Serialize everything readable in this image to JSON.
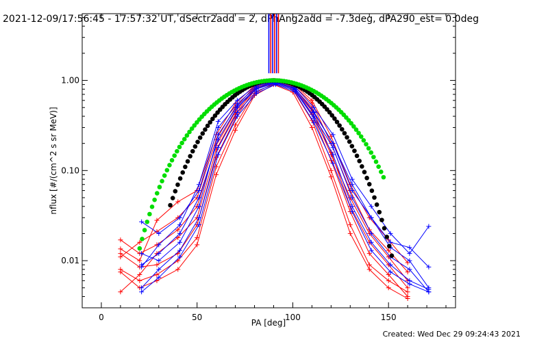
{
  "title": "2021-12-09/17:56:45 - 17:57:32 UT, dSectr2add = 2, dPhAng2add = -7.3deg, dPA290_est=  0.0deg",
  "footer": "Created: Wed Dec 29 09:24:43 2021",
  "chart_data": {
    "type": "scatter",
    "xlabel": "PA [deg]",
    "ylabel": "nflux [#/(cm^2 s sr MeV)]",
    "xlim": [
      -10,
      185
    ],
    "ylim": [
      0.003,
      5.5
    ],
    "yscale": "log",
    "x_ticks": [
      0,
      50,
      100,
      150
    ],
    "x_tick_labels": [
      "0",
      "50",
      "100",
      "150"
    ],
    "y_ticks": [
      0.01,
      0.1,
      1.0
    ],
    "y_tick_labels": [
      "0.01",
      "0.10",
      "1.00"
    ],
    "vertical_lines": [
      {
        "x": 87.5,
        "color": "#0000ff"
      },
      {
        "x": 88.5,
        "color": "#ff0000"
      },
      {
        "x": 89.5,
        "color": "#0000ff"
      },
      {
        "x": 90.5,
        "color": "#ff0000"
      },
      {
        "x": 91.5,
        "color": "#0000ff"
      },
      {
        "x": 92.5,
        "color": "#ff0000"
      }
    ],
    "vertical_line_range": [
      1.2,
      5.5
    ],
    "fits": [
      {
        "color": "#000000",
        "shape": "sin_power",
        "n": 6.0,
        "x_min": 36,
        "x_max": 152,
        "step": 1.3
      },
      {
        "color": "#00dd00",
        "shape": "sin_power",
        "n": 4.0,
        "x_min": 20,
        "x_max": 148,
        "step": 1.3
      }
    ],
    "series": [
      {
        "color": "#ff0000",
        "x": [
          10,
          20,
          29,
          40,
          50,
          60,
          70,
          80,
          90,
          100,
          110,
          120,
          130,
          140,
          150,
          160
        ],
        "y": [
          0.012,
          0.0085,
          0.009,
          0.012,
          0.025,
          0.14,
          0.38,
          0.78,
          0.96,
          0.82,
          0.42,
          0.13,
          0.035,
          0.012,
          0.007,
          0.004
        ]
      },
      {
        "color": "#ff0000",
        "x": [
          10,
          20,
          29,
          40,
          50,
          60,
          70,
          80,
          90,
          100,
          110,
          120,
          130,
          140,
          150,
          160
        ],
        "y": [
          0.017,
          0.012,
          0.015,
          0.022,
          0.04,
          0.19,
          0.45,
          0.82,
          0.98,
          0.86,
          0.5,
          0.16,
          0.04,
          0.016,
          0.009,
          0.005
        ]
      },
      {
        "color": "#ff0000",
        "x": [
          10,
          20,
          29,
          40,
          50,
          60,
          70,
          80,
          90,
          100,
          110,
          120,
          130,
          140,
          150,
          160
        ],
        "y": [
          0.008,
          0.006,
          0.007,
          0.01,
          0.018,
          0.11,
          0.32,
          0.72,
          0.93,
          0.79,
          0.36,
          0.1,
          0.025,
          0.009,
          0.006,
          0.0045
        ]
      },
      {
        "color": "#ff0000",
        "x": [
          10,
          20,
          29,
          40,
          50,
          60,
          70,
          80,
          90,
          100,
          110,
          120,
          130,
          140,
          150,
          160
        ],
        "y": [
          0.0045,
          0.007,
          0.012,
          0.018,
          0.03,
          0.17,
          0.42,
          0.8,
          0.97,
          0.84,
          0.46,
          0.15,
          0.05,
          0.02,
          0.011,
          0.006
        ]
      },
      {
        "color": "#ff0000",
        "x": [
          10,
          20,
          29,
          40,
          50,
          60,
          70,
          80,
          90,
          100,
          110,
          120,
          130,
          140,
          150,
          160
        ],
        "y": [
          0.011,
          0.016,
          0.021,
          0.03,
          0.05,
          0.22,
          0.5,
          0.85,
          0.99,
          0.9,
          0.56,
          0.2,
          0.06,
          0.022,
          0.013,
          0.0075
        ]
      },
      {
        "color": "#ff0000",
        "x": [
          10,
          20,
          29,
          40,
          50,
          60,
          70,
          80,
          90,
          100,
          110,
          120,
          130,
          140,
          150,
          160
        ],
        "y": [
          0.0075,
          0.005,
          0.006,
          0.008,
          0.015,
          0.09,
          0.28,
          0.68,
          0.9,
          0.74,
          0.3,
          0.085,
          0.02,
          0.008,
          0.005,
          0.0038
        ]
      },
      {
        "color": "#ff0000",
        "x": [
          10,
          20,
          29,
          40,
          50,
          60,
          70,
          80,
          90,
          100,
          110,
          120,
          130,
          140,
          150,
          160
        ],
        "y": [
          0.0135,
          0.01,
          0.028,
          0.045,
          0.06,
          0.25,
          0.55,
          0.88,
          1.0,
          0.93,
          0.6,
          0.24,
          0.07,
          0.03,
          0.017,
          0.0095
        ]
      },
      {
        "color": "#0000ff",
        "x": [
          21,
          30,
          41,
          51,
          61,
          71,
          81,
          91,
          101,
          111,
          121,
          131,
          141,
          151,
          161,
          171
        ],
        "y": [
          0.027,
          0.02,
          0.03,
          0.06,
          0.3,
          0.55,
          0.85,
          0.96,
          0.82,
          0.45,
          0.2,
          0.06,
          0.03,
          0.014,
          0.01,
          0.005
        ]
      },
      {
        "color": "#0000ff",
        "x": [
          21,
          30,
          41,
          51,
          61,
          71,
          81,
          91,
          101,
          111,
          121,
          131,
          141,
          151,
          161,
          171
        ],
        "y": [
          0.009,
          0.012,
          0.02,
          0.05,
          0.22,
          0.5,
          0.8,
          0.94,
          0.8,
          0.4,
          0.18,
          0.05,
          0.02,
          0.011,
          0.008,
          0.0045
        ]
      },
      {
        "color": "#0000ff",
        "x": [
          21,
          30,
          41,
          51,
          61,
          71,
          81,
          91,
          101,
          111,
          121,
          131,
          141,
          151,
          161,
          171
        ],
        "y": [
          0.005,
          0.008,
          0.013,
          0.03,
          0.18,
          0.44,
          0.76,
          0.92,
          0.78,
          0.38,
          0.15,
          0.04,
          0.016,
          0.009,
          0.006,
          0.0048
        ]
      },
      {
        "color": "#0000ff",
        "x": [
          21,
          30,
          41,
          51,
          61,
          71,
          81,
          91,
          101,
          111,
          121,
          131,
          141,
          151,
          161,
          171
        ],
        "y": [
          0.0085,
          0.015,
          0.025,
          0.07,
          0.35,
          0.6,
          0.88,
          0.97,
          0.86,
          0.5,
          0.25,
          0.08,
          0.04,
          0.02,
          0.012,
          0.024
        ]
      },
      {
        "color": "#0000ff",
        "x": [
          21,
          30,
          41,
          51,
          61,
          71,
          81,
          91,
          101,
          111,
          121,
          131,
          141,
          151,
          161,
          171
        ],
        "y": [
          0.012,
          0.01,
          0.016,
          0.04,
          0.25,
          0.52,
          0.82,
          0.95,
          0.83,
          0.44,
          0.2,
          0.07,
          0.03,
          0.016,
          0.014,
          0.0085
        ]
      },
      {
        "color": "#0000ff",
        "x": [
          21,
          30,
          41,
          51,
          61,
          71,
          81,
          91,
          101,
          111,
          121,
          131,
          141,
          151,
          161,
          171
        ],
        "y": [
          0.0045,
          0.0065,
          0.011,
          0.025,
          0.15,
          0.4,
          0.72,
          0.9,
          0.75,
          0.34,
          0.12,
          0.035,
          0.013,
          0.0075,
          0.0055,
          0.0045
        ]
      }
    ]
  }
}
